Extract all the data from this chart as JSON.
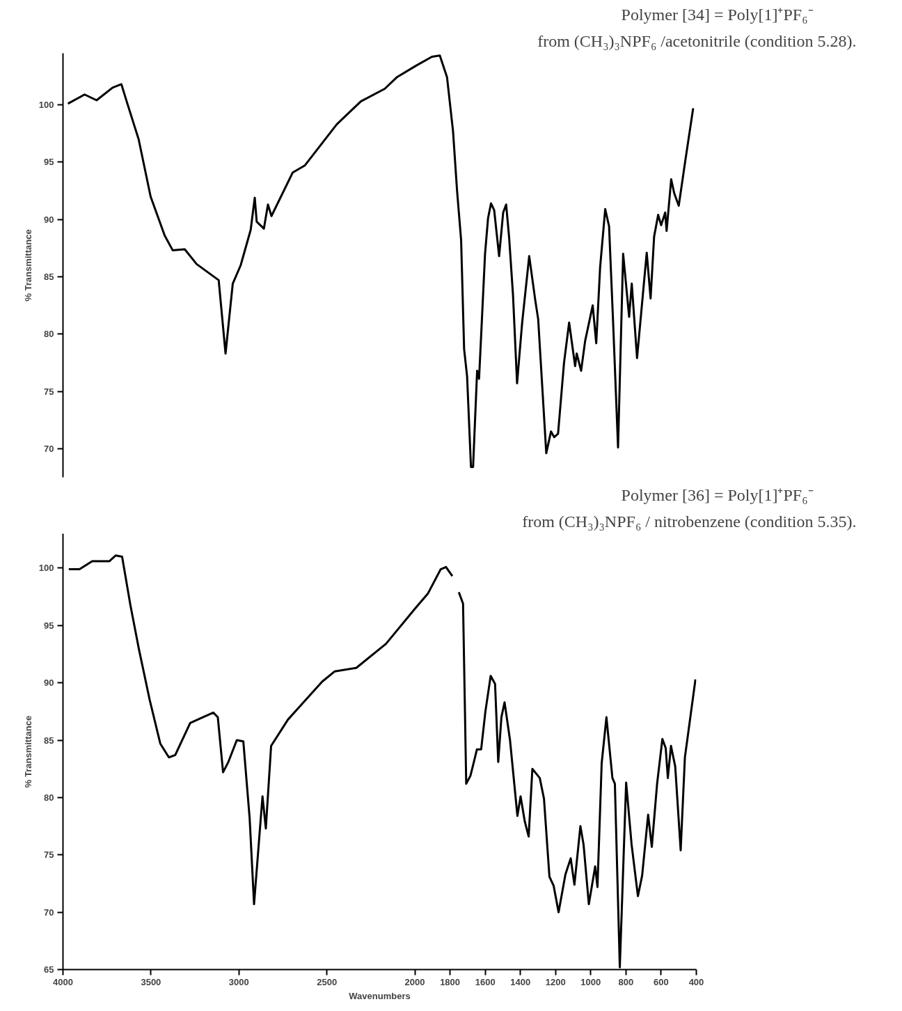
{
  "chart_data": [
    {
      "type": "line",
      "title": "Polymer [34]  =  Poly[1]⁺PF₆⁻",
      "subtitle": "from (CH₃)₃NPF₆ /acetonitrile (condition 5.28).",
      "ylabel": "% Transmittance",
      "xlim": [
        4000,
        400
      ],
      "ylim": [
        67.5,
        104.5
      ],
      "yticks": [
        70,
        75,
        80,
        85,
        90,
        95,
        100
      ],
      "tick_labels": "y",
      "grid": false,
      "series": [
        {
          "color": "#000000",
          "x": [
            3972,
            3877,
            3809,
            3718,
            3668,
            3638,
            3570,
            3502,
            3422,
            3376,
            3308,
            3240,
            3115,
            3076,
            3035,
            2990,
            2933,
            2910,
            2899,
            2858,
            2835,
            2815,
            2694,
            2626,
            2444,
            2307,
            2171,
            2103,
            1995,
            1903,
            1858,
            1817,
            1783,
            1760,
            1737,
            1720,
            1703,
            1681,
            1669,
            1646,
            1635,
            1624,
            1601,
            1584,
            1567,
            1549,
            1521,
            1498,
            1481,
            1464,
            1442,
            1419,
            1390,
            1350,
            1316,
            1299,
            1253,
            1226,
            1208,
            1186,
            1152,
            1123,
            1089,
            1080,
            1055,
            1032,
            989,
            969,
            947,
            918,
            896,
            873,
            845,
            816,
            782,
            767,
            737,
            682,
            660,
            640,
            617,
            600,
            577,
            569,
            543,
            526,
            500,
            463,
            418
          ],
          "values": [
            100.1,
            100.9,
            100.4,
            101.5,
            101.8,
            100.3,
            97.0,
            92.0,
            88.6,
            87.3,
            87.4,
            86.1,
            84.7,
            78.3,
            84.4,
            86.0,
            89.1,
            91.9,
            89.8,
            89.2,
            91.3,
            90.3,
            94.1,
            94.7,
            98.3,
            100.3,
            101.4,
            102.4,
            103.4,
            104.2,
            104.3,
            102.4,
            97.7,
            92.5,
            88.2,
            78.7,
            76.3,
            68.4,
            68.4,
            76.8,
            76.1,
            79.6,
            87.0,
            90.1,
            91.4,
            90.8,
            86.8,
            90.6,
            91.3,
            88.4,
            83.4,
            75.7,
            81.0,
            86.8,
            83.0,
            81.3,
            69.6,
            71.5,
            71.0,
            71.3,
            77.5,
            81.0,
            77.2,
            78.3,
            76.8,
            79.4,
            82.5,
            79.2,
            85.8,
            90.9,
            89.4,
            81.0,
            70.1,
            87.0,
            81.5,
            84.4,
            77.9,
            87.1,
            83.1,
            88.5,
            90.4,
            89.5,
            90.6,
            89.0,
            93.5,
            92.3,
            91.2,
            95.1,
            99.7
          ]
        }
      ]
    },
    {
      "type": "line",
      "title": "Polymer [36]  =  Poly[1]⁺PF₆⁻",
      "subtitle": "from (CH₃)₃NPF₆ / nitrobenzene (condition 5.35).",
      "xlabel": "Wavenumbers",
      "ylabel": "% Transmittance",
      "xlim": [
        4000,
        400
      ],
      "ylim": [
        65,
        103
      ],
      "xticks": [
        4000,
        3500,
        3000,
        2500,
        2000,
        1800,
        1600,
        1400,
        1200,
        1000,
        800,
        600,
        400
      ],
      "yticks": [
        65,
        70,
        75,
        80,
        85,
        90,
        95,
        100
      ],
      "grid": false,
      "series": [
        {
          "color": "#000000",
          "x": [
            3967,
            3906,
            3834,
            3737,
            3701,
            3664,
            3616,
            3568,
            3507,
            3447,
            3398,
            3362,
            3277,
            3205,
            3145,
            3120,
            3090,
            3060,
            3012,
            2975,
            2939,
            2914,
            2866,
            2847,
            2817,
            2721,
            2527,
            2455,
            2333,
            2164,
            1997,
            1925,
            1853,
            1823,
            1787,
            1770,
            1750,
            1726,
            1708,
            1684,
            1666,
            1647,
            1623,
            1599,
            1569,
            1544,
            1526,
            1508,
            1490,
            1459,
            1417,
            1399,
            1375,
            1353,
            1332,
            1290,
            1266,
            1235,
            1211,
            1183,
            1144,
            1114,
            1093,
            1059,
            1041,
            1011,
            975,
            962,
            938,
            911,
            877,
            863,
            835,
            799,
            768,
            732,
            708,
            674,
            653,
            623,
            593,
            574,
            562,
            544,
            520,
            489,
            465,
            405
          ],
          "values": [
            99.9,
            99.9,
            100.6,
            100.6,
            101.1,
            101.0,
            96.7,
            92.9,
            88.5,
            84.7,
            83.5,
            83.7,
            86.5,
            87.0,
            87.4,
            87.0,
            82.2,
            83.1,
            85.0,
            84.9,
            78.2,
            70.7,
            80.1,
            77.3,
            84.5,
            86.8,
            90.1,
            91.0,
            91.3,
            93.4,
            96.5,
            97.8,
            99.9,
            100.1,
            99.3,
            null,
            97.9,
            96.9,
            81.2,
            81.9,
            83.0,
            84.2,
            84.2,
            87.5,
            90.6,
            89.9,
            83.1,
            87.0,
            88.3,
            85.0,
            78.4,
            80.1,
            77.9,
            76.6,
            82.5,
            81.7,
            79.9,
            73.1,
            72.3,
            70.0,
            73.3,
            74.7,
            72.4,
            77.5,
            75.9,
            70.7,
            74.0,
            72.2,
            83.0,
            87.0,
            81.7,
            81.2,
            65.2,
            81.3,
            75.9,
            71.4,
            73.2,
            78.5,
            75.7,
            81.2,
            85.1,
            84.3,
            81.7,
            84.5,
            82.7,
            75.4,
            83.5,
            90.3
          ]
        }
      ]
    }
  ]
}
